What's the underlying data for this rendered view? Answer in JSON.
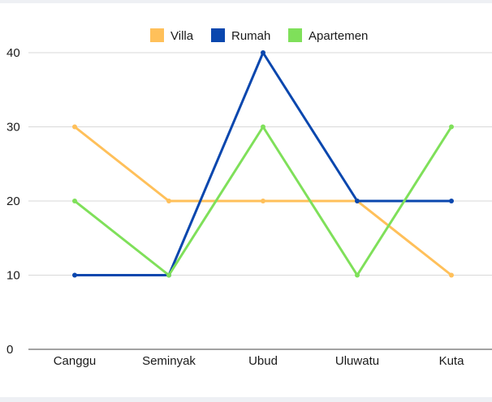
{
  "chart_data": {
    "type": "line",
    "categories": [
      "Canggu",
      "Seminyak",
      "Ubud",
      "Uluwatu",
      "Kuta"
    ],
    "series": [
      {
        "name": "Villa",
        "color": "#FFC05A",
        "values": [
          30,
          20,
          20,
          20,
          10
        ]
      },
      {
        "name": "Rumah",
        "color": "#0A47AE",
        "values": [
          10,
          10,
          40,
          20,
          20
        ]
      },
      {
        "name": "Apartemen",
        "color": "#7FE05A",
        "values": [
          20,
          10,
          30,
          10,
          30
        ]
      }
    ],
    "yticks": [
      0,
      10,
      20,
      30,
      40
    ],
    "ylim": [
      0,
      40
    ],
    "grid": true,
    "legend_position": "top-center"
  }
}
